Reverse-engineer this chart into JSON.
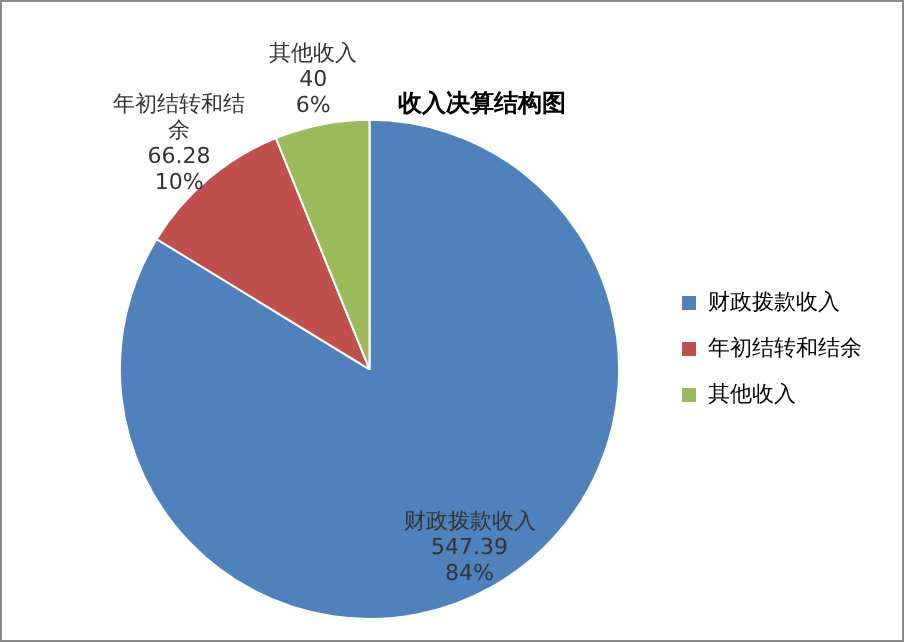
{
  "chart_data": {
    "type": "pie",
    "title": "收入决算结构图",
    "categories": [
      "财政拨款收入",
      "年初结转和结余",
      "其他收入"
    ],
    "values": [
      547.39,
      66.28,
      40
    ],
    "colors": [
      "#4f81bd",
      "#c0504d",
      "#9bbb59"
    ],
    "value_labels": [
      "547.39\n84%",
      "66.28\n10%",
      "40\n6%"
    ],
    "legend": "right"
  }
}
